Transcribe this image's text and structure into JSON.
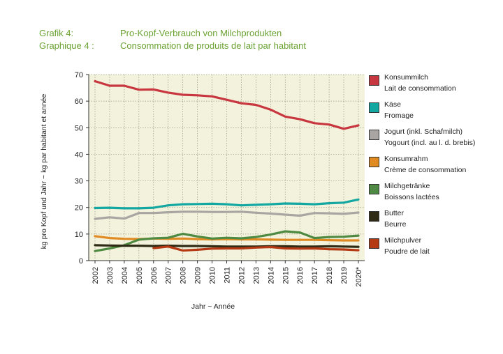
{
  "header": {
    "label_de": "Grafik 4:",
    "label_fr": "Graphique 4 :",
    "title_de": "Pro-Kopf-Verbrauch von Milchprodukten",
    "title_fr": "Consommation de produits de lait par habitant"
  },
  "chart_data": {
    "type": "line",
    "xlabel": "Jahr  ~  Année",
    "ylabel": "kg pro Kopf und Jahr  ~  kg par habitant et année",
    "ylim": [
      0,
      70
    ],
    "yticks": [
      0,
      10,
      20,
      30,
      40,
      50,
      60,
      70
    ],
    "grid": true,
    "legend_position": "right",
    "categories": [
      "2002",
      "2003",
      "2004",
      "2005",
      "2006",
      "2007",
      "2008",
      "2009",
      "2010",
      "2011",
      "2012",
      "2013",
      "2014",
      "2015",
      "2016",
      "2017",
      "2018",
      "2019",
      "2020*"
    ],
    "series": [
      {
        "name_de": "Konsummilch",
        "name_fr": "Lait de consommation",
        "color": "#c8373f",
        "values": [
          67.5,
          65.8,
          65.8,
          64.3,
          64.4,
          63.2,
          62.4,
          62.2,
          61.8,
          60.5,
          59.2,
          58.6,
          56.8,
          54.2,
          53.2,
          51.7,
          51.2,
          49.6,
          50.9
        ]
      },
      {
        "name_de": "Käse",
        "name_fr": "Fromage",
        "color": "#12a7a1",
        "values": [
          19.8,
          19.9,
          19.7,
          19.7,
          19.9,
          20.8,
          21.2,
          21.3,
          21.4,
          21.2,
          20.8,
          21.0,
          21.2,
          21.5,
          21.4,
          21.2,
          21.6,
          21.8,
          23.0
        ]
      },
      {
        "name_de": "Jogurt (inkl. Schafmilch)",
        "name_fr": "Yogourt (incl. au l. d. brebis)",
        "color": "#a8a5a2",
        "values": [
          15.7,
          16.3,
          15.8,
          17.9,
          17.9,
          18.2,
          18.4,
          18.4,
          18.3,
          18.3,
          18.4,
          18.0,
          17.7,
          17.3,
          16.9,
          17.9,
          17.8,
          17.6,
          18.1
        ]
      },
      {
        "name_de": "Konsumrahm",
        "name_fr": "Crème de consommation",
        "color": "#e08a22",
        "values": [
          9.2,
          8.5,
          8.2,
          8.1,
          8.3,
          8.2,
          8.3,
          8.1,
          8.0,
          8.1,
          8.0,
          8.0,
          7.9,
          7.8,
          7.8,
          7.8,
          7.7,
          7.6,
          7.6
        ]
      },
      {
        "name_de": "Milchgetränke",
        "name_fr": "Boissons lactées",
        "color": "#4f8a42",
        "values": [
          3.6,
          4.6,
          5.8,
          7.9,
          8.4,
          8.6,
          10.1,
          9.1,
          8.3,
          8.6,
          8.4,
          8.9,
          9.8,
          11.0,
          10.6,
          8.5,
          8.9,
          9.0,
          9.4
        ]
      },
      {
        "name_de": "Butter",
        "name_fr": "Beurre",
        "color": "#2e2a14",
        "values": [
          5.8,
          5.7,
          5.6,
          5.6,
          5.5,
          5.6,
          5.5,
          5.5,
          5.4,
          5.3,
          5.3,
          5.3,
          5.4,
          5.4,
          5.3,
          5.3,
          5.4,
          5.3,
          5.2
        ]
      },
      {
        "name_de": "Milchpulver",
        "name_fr": "Poudre de lait",
        "color": "#b53a14",
        "values": [
          null,
          null,
          null,
          null,
          4.7,
          5.3,
          3.8,
          4.1,
          4.5,
          4.6,
          4.6,
          4.9,
          5.1,
          4.6,
          4.5,
          4.6,
          4.3,
          4.2,
          3.9
        ]
      }
    ]
  }
}
